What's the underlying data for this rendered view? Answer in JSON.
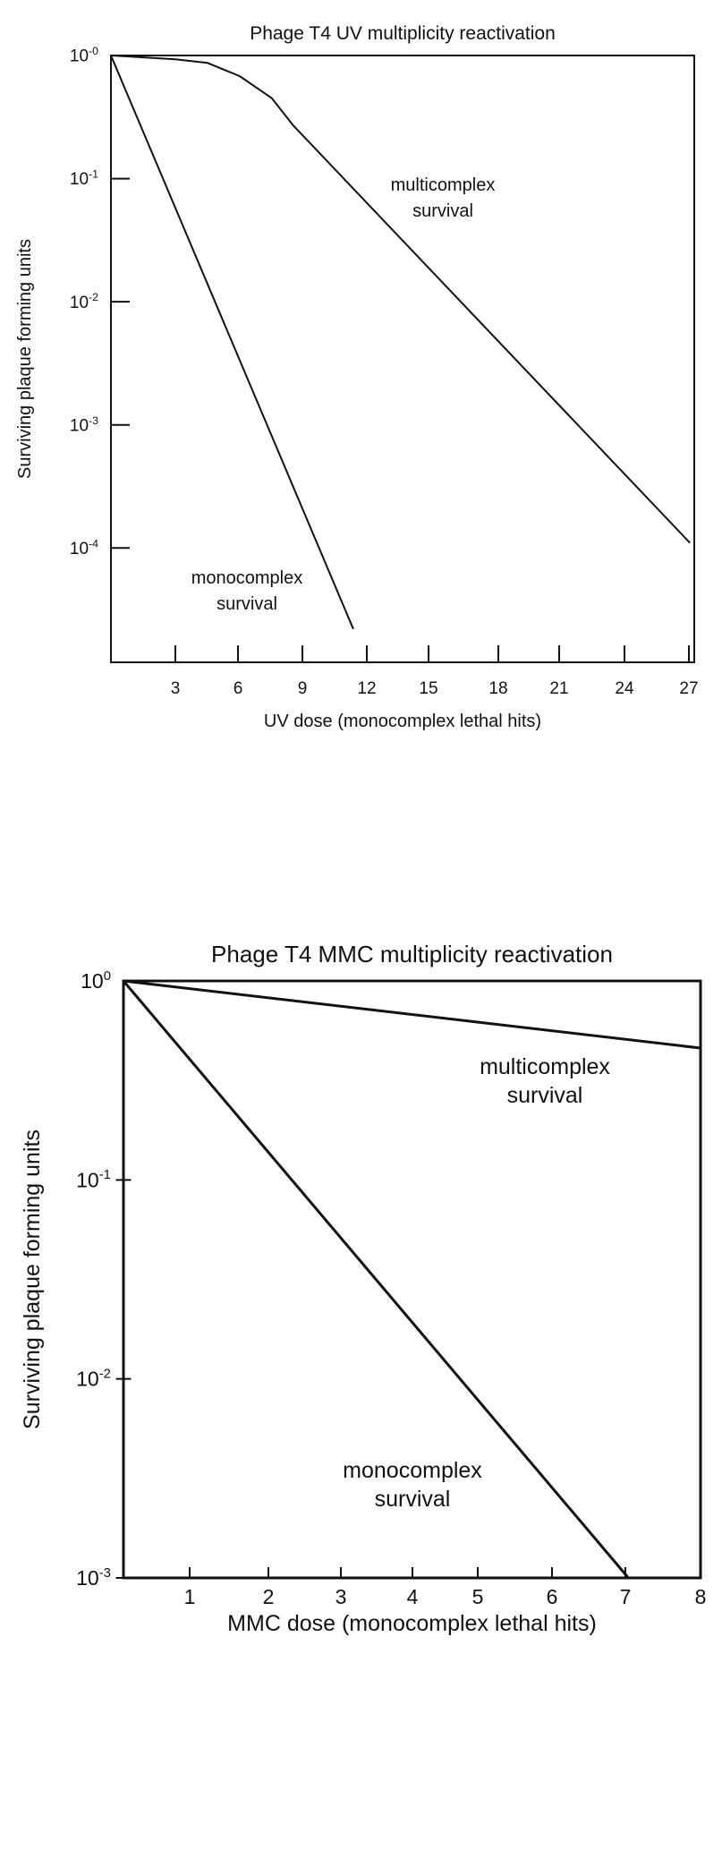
{
  "chart_data": [
    {
      "type": "line",
      "title": "Phage T4 UV multiplicity reactivation",
      "xlabel": "UV dose (monocomplex lethal hits)",
      "ylabel": "Surviving plaque forming units",
      "yscale": "log",
      "xlim": [
        0,
        27.2
      ],
      "ylim": [
        1.18e-05,
        1
      ],
      "grid": false,
      "xticks": [
        3,
        6,
        9,
        12,
        15,
        18,
        21,
        24,
        27
      ],
      "xtick_labels": [
        "3",
        "6",
        "9",
        "12",
        "15",
        "18",
        "21",
        "24",
        "27"
      ],
      "yticks": [
        {
          "value": 1,
          "base": "10",
          "exp": "-0"
        },
        {
          "value": 0.1,
          "base": "10",
          "exp": "-1"
        },
        {
          "value": 0.01,
          "base": "10",
          "exp": "-2"
        },
        {
          "value": 0.001,
          "base": "10",
          "exp": "-3"
        },
        {
          "value": 0.0001,
          "base": "10",
          "exp": "-4"
        }
      ],
      "series": [
        {
          "name": "multicomplex survival",
          "label_lines": [
            "multicomplex",
            "survival"
          ],
          "x": [
            0,
            3,
            4.5,
            6,
            7.5,
            8.5,
            27
          ],
          "y": [
            1,
            0.93,
            0.87,
            0.68,
            0.45,
            0.27,
            0.00011
          ]
        },
        {
          "name": "monocomplex survival",
          "label_lines": [
            "monocomplex",
            "survival"
          ],
          "x": [
            0,
            11.3
          ],
          "y": [
            1,
            2.2e-05
          ]
        }
      ]
    },
    {
      "type": "line",
      "title": "Phage T4 MMC multiplicity reactivation",
      "xlabel": "MMC dose (monocomplex lethal hits)",
      "ylabel": "Surviving plaque forming units",
      "yscale": "log",
      "xlim": [
        0,
        8
      ],
      "ylim": [
        0.001,
        1
      ],
      "grid": false,
      "xticks": [
        1,
        2,
        3,
        4,
        5,
        6,
        7,
        8
      ],
      "xtick_labels": [
        "1",
        "2",
        "3",
        "4",
        "5",
        "6",
        "7",
        "8"
      ],
      "yticks": [
        {
          "value": 1,
          "base": "10",
          "exp": "0"
        },
        {
          "value": 0.1,
          "base": "10",
          "exp": "-1"
        },
        {
          "value": 0.01,
          "base": "10",
          "exp": "-2"
        },
        {
          "value": 0.001,
          "base": "10",
          "exp": "-3"
        }
      ],
      "series": [
        {
          "name": "multicomplex survival",
          "label_lines": [
            "multicomplex",
            "survival"
          ],
          "x": [
            0,
            8
          ],
          "y": [
            1,
            0.46
          ]
        },
        {
          "name": "monocomplex survival",
          "label_lines": [
            "monocomplex",
            "survival"
          ],
          "x": [
            0,
            7
          ],
          "y": [
            1,
            0.001
          ]
        }
      ]
    }
  ]
}
